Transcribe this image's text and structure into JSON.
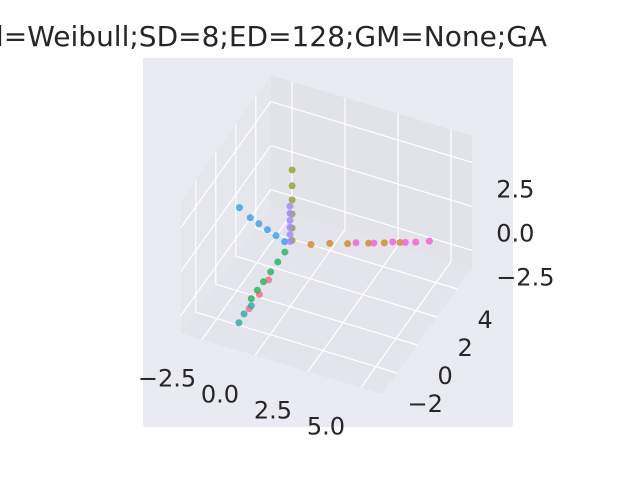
{
  "chart_data": {
    "type": "scatter3d",
    "title": "l=Weibull;SD=8;ED=128;GM=None;GA",
    "xlim": [
      -3.5,
      6.0
    ],
    "ylim": [
      -3.5,
      5.5
    ],
    "zlim": [
      -3.5,
      4.0
    ],
    "xticks": [
      {
        "value": -2.5,
        "label": "−2.5"
      },
      {
        "value": 0,
        "label": "0.0"
      },
      2.5,
      {
        "value": 5,
        "label": "5.0"
      }
    ],
    "yticks": [
      {
        "value": -2,
        "label": "−2"
      },
      0,
      2,
      4
    ],
    "zticks": [
      {
        "value": -2.5,
        "label": "−2.5"
      },
      {
        "value": 0,
        "label": "0.0"
      },
      2.5
    ],
    "grid": true,
    "series": [
      {
        "color": "#3ba3ec",
        "x": [
          -0.3,
          -0.8,
          -1.3,
          -1.8,
          -2.3,
          -3.0
        ],
        "y": [
          0.1,
          0.3,
          0.5,
          0.7,
          0.9,
          1.3
        ],
        "z": [
          0,
          0,
          0,
          0,
          0,
          0
        ]
      },
      {
        "color": "#97a431",
        "x": [
          0.1,
          0.1,
          0.1,
          0.1,
          0.1,
          0.1
        ],
        "y": [
          0,
          0,
          0,
          0,
          0,
          0
        ],
        "z": [
          0.3,
          1.0,
          1.8,
          2.6,
          3.4,
          4.3
        ]
      },
      {
        "color": "#a48cf4",
        "x": [
          0,
          0,
          0,
          0,
          0,
          0
        ],
        "y": [
          0,
          0,
          0,
          0,
          0,
          0
        ],
        "z": [
          0.2,
          0.6,
          1.0,
          1.4,
          1.8,
          2.2
        ]
      },
      {
        "color": "#ce8f31",
        "x": [
          0.8,
          1.5,
          2.2,
          3.0,
          3.6,
          4.2
        ],
        "y": [
          0.4,
          0.8,
          1.1,
          1.5,
          1.8,
          2.1
        ],
        "z": [
          0,
          0,
          0,
          0,
          0,
          0
        ]
      },
      {
        "color": "#f564d4",
        "x": [
          2.5,
          3.2,
          3.9,
          4.4,
          4.8,
          5.3
        ],
        "y": [
          1.3,
          1.6,
          2.0,
          2.2,
          2.4,
          2.7
        ],
        "z": [
          0,
          0,
          0,
          0,
          0,
          0
        ]
      },
      {
        "color": "#f77189",
        "x": [
          -0.3,
          -0.5,
          -0.7
        ],
        "y": [
          -1.5,
          -2.0,
          -2.6
        ],
        "z": [
          -0.9,
          -1.4,
          -1.8
        ]
      },
      {
        "color": "#32b166",
        "x": [
          -0.1,
          -0.2,
          -0.3,
          -0.4,
          -0.5,
          -0.6
        ],
        "y": [
          -0.3,
          -0.8,
          -1.3,
          -1.8,
          -2.2,
          -2.6
        ],
        "z": [
          -0.2,
          -0.4,
          -0.6,
          -0.8,
          -1.0,
          -1.2
        ]
      },
      {
        "color": "#36ada4",
        "x": [
          -0.6,
          -0.8,
          -0.9
        ],
        "y": [
          -2.6,
          -2.9,
          -3.2
        ],
        "z": [
          -1.6,
          -1.9,
          -2.2
        ]
      }
    ]
  }
}
